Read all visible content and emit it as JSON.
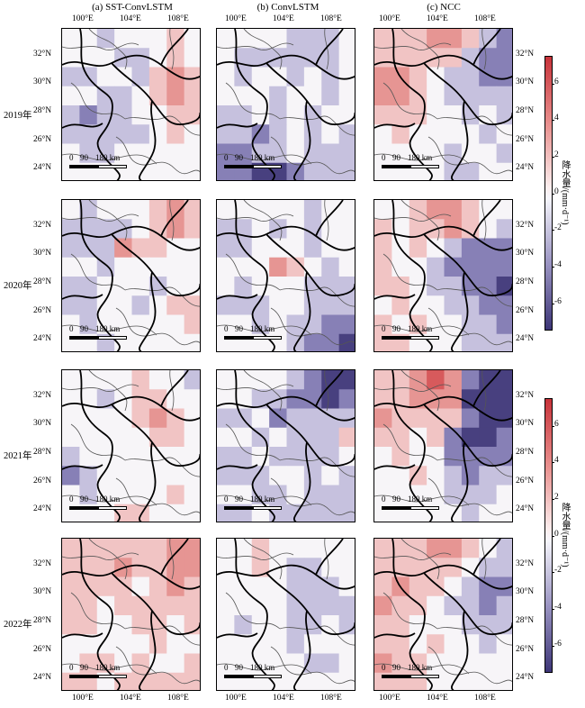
{
  "columns": [
    {
      "key": "a",
      "title": "(a) SST-ConvLSTM"
    },
    {
      "key": "b",
      "title": "(b) ConvLSTM"
    },
    {
      "key": "c",
      "title": "(c) NCC"
    }
  ],
  "rows": [
    {
      "year": "2019年"
    },
    {
      "year": "2020年"
    },
    {
      "year": "2021年"
    },
    {
      "year": "2022年"
    }
  ],
  "lon_ticks": [
    "100°E",
    "104°E",
    "108°E"
  ],
  "lat_ticks": [
    "32°N",
    "30°N",
    "28°N",
    "26°N",
    "24°N"
  ],
  "scalebar": {
    "labels": [
      "0",
      "90",
      "180 km"
    ]
  },
  "colorbar": {
    "label": "降水量/(mm·d⁻¹)",
    "ticks": [
      "6",
      "4",
      "2",
      "0",
      "-2",
      "-4",
      "-6"
    ],
    "range": [
      -7.5,
      7.5
    ],
    "colors": {
      "high": "#c8333a",
      "mid": "#ffffff",
      "low": "#3d3678"
    }
  },
  "anomaly_grid_levels": {
    "2019": {
      "a": [
        [
          0,
          0,
          -1,
          0,
          0,
          0,
          1,
          0
        ],
        [
          0,
          0,
          0,
          -1,
          -1,
          0,
          1,
          0
        ],
        [
          -1,
          -1,
          0,
          0,
          -1,
          1,
          2,
          1
        ],
        [
          0,
          0,
          -1,
          -1,
          0,
          1,
          2,
          1
        ],
        [
          -1,
          -2,
          -1,
          -1,
          0,
          0,
          1,
          1
        ],
        [
          -1,
          -1,
          -1,
          -1,
          -1,
          0,
          1,
          0
        ],
        [
          0,
          -1,
          -1,
          0,
          0,
          0,
          0,
          0
        ],
        [
          0,
          0,
          0,
          0,
          0,
          0,
          0,
          0
        ]
      ],
      "b": [
        [
          0,
          0,
          0,
          0,
          -1,
          -1,
          -1,
          0
        ],
        [
          0,
          -1,
          -1,
          -1,
          -1,
          -1,
          -1,
          0
        ],
        [
          0,
          -1,
          0,
          0,
          -1,
          0,
          -1,
          0
        ],
        [
          0,
          0,
          0,
          -1,
          0,
          0,
          -1,
          0
        ],
        [
          -1,
          -1,
          0,
          -1,
          0,
          -1,
          0,
          0
        ],
        [
          -1,
          -1,
          -2,
          -1,
          0,
          -1,
          0,
          -1
        ],
        [
          -2,
          -2,
          -1,
          -1,
          0,
          -1,
          -1,
          -1
        ],
        [
          -2,
          -2,
          -3,
          -3,
          -2,
          -1,
          -1,
          -1
        ]
      ],
      "c": [
        [
          1,
          1,
          1,
          2,
          2,
          1,
          -1,
          -2
        ],
        [
          1,
          1,
          1,
          1,
          1,
          -1,
          -2,
          -2
        ],
        [
          2,
          2,
          1,
          0,
          -1,
          -1,
          -2,
          -2
        ],
        [
          2,
          2,
          1,
          0,
          -1,
          -1,
          -1,
          -1
        ],
        [
          1,
          1,
          1,
          0,
          0,
          -1,
          0,
          -1
        ],
        [
          0,
          1,
          0,
          0,
          0,
          0,
          -1,
          0
        ],
        [
          0,
          0,
          0,
          0,
          -1,
          0,
          0,
          -1
        ],
        [
          0,
          0,
          0,
          0,
          -1,
          -1,
          0,
          0
        ]
      ]
    },
    "2020": {
      "a": [
        [
          0,
          -1,
          0,
          0,
          0,
          1,
          2,
          1
        ],
        [
          -1,
          -1,
          -1,
          -1,
          0,
          1,
          2,
          1
        ],
        [
          -1,
          -1,
          -1,
          2,
          1,
          1,
          0,
          0
        ],
        [
          0,
          0,
          -1,
          0,
          0,
          0,
          0,
          0
        ],
        [
          -1,
          -1,
          0,
          0,
          0,
          -1,
          0,
          0
        ],
        [
          -1,
          -1,
          0,
          0,
          -1,
          0,
          1,
          1
        ],
        [
          0,
          -1,
          0,
          0,
          0,
          0,
          0,
          1
        ],
        [
          0,
          0,
          -1,
          0,
          0,
          0,
          0,
          0
        ]
      ],
      "b": [
        [
          0,
          0,
          0,
          0,
          0,
          -1,
          0,
          0
        ],
        [
          -1,
          -1,
          0,
          -1,
          0,
          -1,
          0,
          0
        ],
        [
          -1,
          -1,
          0,
          0,
          0,
          -1,
          0,
          0
        ],
        [
          0,
          0,
          0,
          2,
          1,
          0,
          -1,
          0
        ],
        [
          0,
          -1,
          0,
          0,
          0,
          -1,
          -1,
          -1
        ],
        [
          -1,
          -1,
          -1,
          0,
          0,
          -1,
          -1,
          -1
        ],
        [
          0,
          0,
          -1,
          0,
          -1,
          -1,
          -2,
          -2
        ],
        [
          0,
          0,
          0,
          0,
          -1,
          -2,
          -2,
          -3
        ]
      ],
      "c": [
        [
          0,
          0,
          1,
          2,
          2,
          1,
          0,
          0
        ],
        [
          1,
          0,
          1,
          1,
          2,
          1,
          0,
          -1
        ],
        [
          1,
          0,
          1,
          0,
          -1,
          -2,
          -2,
          -2
        ],
        [
          1,
          0,
          0,
          -1,
          -2,
          -2,
          -2,
          -2
        ],
        [
          1,
          1,
          0,
          -1,
          -1,
          -2,
          -2,
          -3
        ],
        [
          0,
          1,
          0,
          0,
          -1,
          -1,
          -2,
          -2
        ],
        [
          1,
          0,
          1,
          0,
          0,
          -1,
          -1,
          -2
        ],
        [
          1,
          1,
          0,
          0,
          0,
          -1,
          -1,
          -1
        ]
      ]
    },
    "2021": {
      "a": [
        [
          0,
          0,
          0,
          0,
          1,
          0,
          0,
          -1
        ],
        [
          0,
          0,
          -1,
          0,
          1,
          1,
          0,
          0
        ],
        [
          0,
          0,
          0,
          0,
          1,
          2,
          1,
          0
        ],
        [
          0,
          0,
          0,
          0,
          0,
          1,
          1,
          0
        ],
        [
          -1,
          0,
          0,
          0,
          0,
          0,
          0,
          0
        ],
        [
          -2,
          -1,
          0,
          0,
          0,
          0,
          0,
          0
        ],
        [
          0,
          -1,
          0,
          0,
          0,
          0,
          1,
          0
        ],
        [
          0,
          0,
          0,
          1,
          1,
          0,
          0,
          0
        ]
      ],
      "b": [
        [
          0,
          0,
          0,
          0,
          -1,
          -2,
          -3,
          -3
        ],
        [
          0,
          0,
          -1,
          -1,
          -2,
          -2,
          -3,
          -2
        ],
        [
          -1,
          -1,
          0,
          -2,
          -1,
          -1,
          -1,
          -1
        ],
        [
          0,
          0,
          -1,
          0,
          -1,
          -1,
          -1,
          1
        ],
        [
          -1,
          -1,
          0,
          -1,
          -1,
          -1,
          -1,
          0
        ],
        [
          -1,
          -1,
          -1,
          0,
          0,
          -1,
          0,
          -1
        ],
        [
          0,
          0,
          -1,
          -1,
          0,
          -1,
          -1,
          -1
        ],
        [
          -1,
          -1,
          0,
          -1,
          -1,
          -1,
          -1,
          -1
        ]
      ],
      "c": [
        [
          1,
          1,
          2,
          3,
          2,
          -2,
          -3,
          -3
        ],
        [
          1,
          1,
          2,
          2,
          2,
          -3,
          -3,
          -3
        ],
        [
          2,
          1,
          1,
          1,
          1,
          -2,
          -3,
          -3
        ],
        [
          1,
          1,
          0,
          1,
          -2,
          -3,
          -3,
          -2
        ],
        [
          0,
          1,
          0,
          0,
          -2,
          -2,
          -2,
          -2
        ],
        [
          0,
          0,
          1,
          0,
          -1,
          -2,
          -1,
          -1
        ],
        [
          0,
          0,
          0,
          0,
          -1,
          -1,
          -1,
          0
        ],
        [
          0,
          0,
          0,
          0,
          0,
          -1,
          0,
          0
        ]
      ]
    },
    "2022": {
      "a": [
        [
          1,
          1,
          1,
          1,
          1,
          1,
          2,
          2
        ],
        [
          1,
          1,
          1,
          2,
          1,
          1,
          2,
          2
        ],
        [
          1,
          1,
          1,
          1,
          0,
          1,
          2,
          1
        ],
        [
          1,
          1,
          0,
          1,
          1,
          1,
          1,
          1
        ],
        [
          1,
          1,
          0,
          0,
          1,
          1,
          0,
          1
        ],
        [
          0,
          0,
          0,
          0,
          0,
          1,
          0,
          0
        ],
        [
          0,
          1,
          1,
          0,
          1,
          0,
          0,
          1
        ],
        [
          1,
          1,
          0,
          1,
          1,
          1,
          1,
          1
        ]
      ],
      "b": [
        [
          0,
          0,
          1,
          0,
          0,
          0,
          0,
          0
        ],
        [
          0,
          0,
          1,
          0,
          -1,
          -1,
          0,
          0
        ],
        [
          0,
          0,
          0,
          0,
          -1,
          -1,
          -1,
          0
        ],
        [
          0,
          0,
          0,
          0,
          -1,
          -1,
          -1,
          -1
        ],
        [
          0,
          -1,
          0,
          0,
          -1,
          -1,
          0,
          -1
        ],
        [
          0,
          0,
          0,
          0,
          -1,
          0,
          0,
          0
        ],
        [
          0,
          0,
          0,
          0,
          0,
          -1,
          -1,
          0
        ],
        [
          0,
          0,
          0,
          0,
          0,
          0,
          0,
          0
        ]
      ],
      "c": [
        [
          1,
          1,
          1,
          2,
          2,
          1,
          0,
          -1
        ],
        [
          1,
          1,
          1,
          1,
          1,
          0,
          -1,
          -1
        ],
        [
          1,
          2,
          1,
          1,
          0,
          -1,
          -2,
          -2
        ],
        [
          2,
          1,
          1,
          0,
          -1,
          -1,
          -2,
          -1
        ],
        [
          1,
          1,
          0,
          0,
          0,
          -1,
          -1,
          -1
        ],
        [
          1,
          1,
          0,
          1,
          0,
          0,
          -1,
          0
        ],
        [
          2,
          1,
          1,
          0,
          0,
          0,
          0,
          0
        ],
        [
          1,
          1,
          1,
          0,
          0,
          0,
          0,
          0
        ]
      ]
    }
  }
}
